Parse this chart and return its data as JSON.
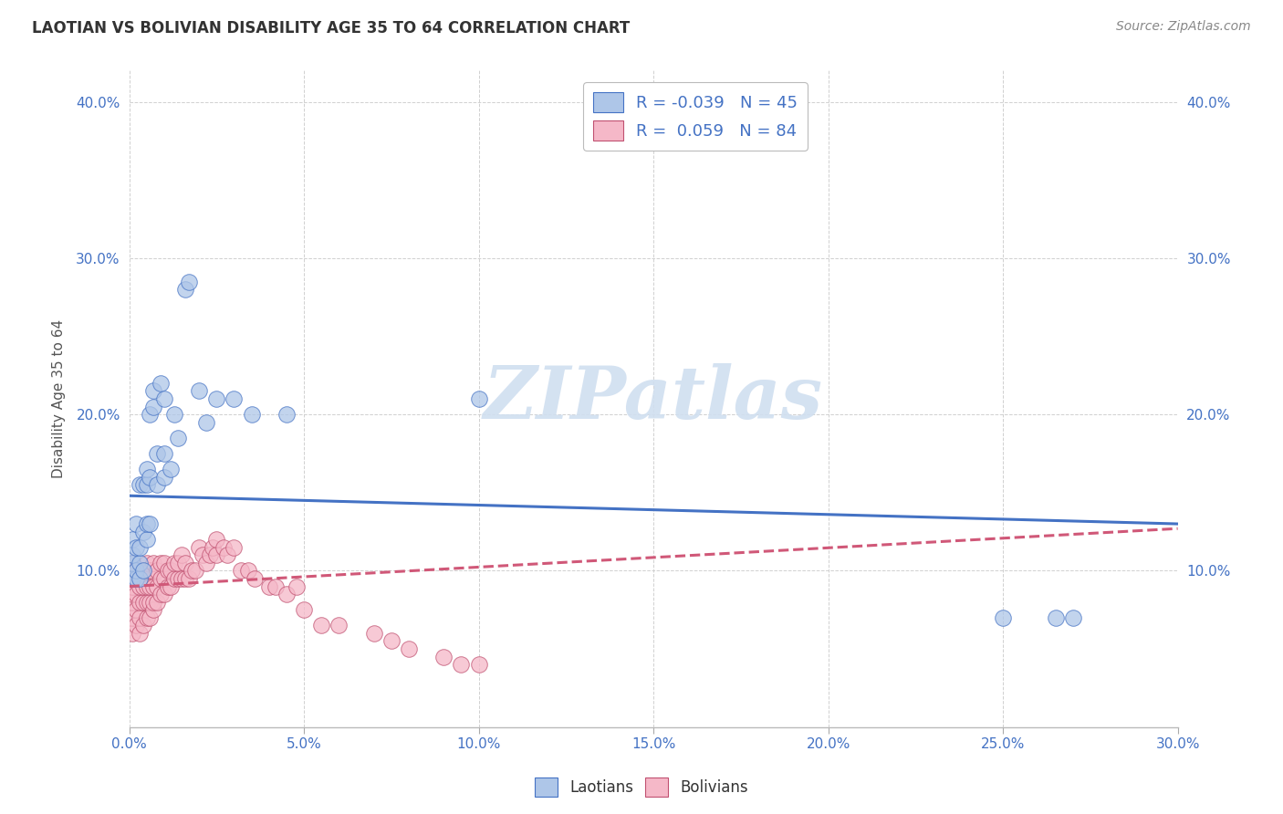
{
  "title": "LAOTIAN VS BOLIVIAN DISABILITY AGE 35 TO 64 CORRELATION CHART",
  "source": "Source: ZipAtlas.com",
  "ylabel_label": "Disability Age 35 to 64",
  "xlim": [
    0.0,
    0.3
  ],
  "ylim": [
    0.0,
    0.42
  ],
  "xticks": [
    0.0,
    0.05,
    0.1,
    0.15,
    0.2,
    0.25,
    0.3
  ],
  "yticks": [
    0.0,
    0.1,
    0.2,
    0.3,
    0.4
  ],
  "background_color": "#ffffff",
  "grid_color": "#d0d0d0",
  "laotian_color": "#aec6e8",
  "laotian_edge": "#4472c4",
  "bolivian_color": "#f5b8c8",
  "bolivian_edge": "#c05070",
  "trend_blue_color": "#4472c4",
  "trend_pink_color": "#d05878",
  "axis_label_color": "#4472c4",
  "title_color": "#333333",
  "source_color": "#888888",
  "watermark": "ZIPatlas",
  "watermark_color": "#d0dff0",
  "blue_trend_x0": 0.0,
  "blue_trend_y0": 0.148,
  "blue_trend_x1": 0.3,
  "blue_trend_y1": 0.13,
  "pink_trend_x0": 0.0,
  "pink_trend_y0": 0.09,
  "pink_trend_x1": 0.3,
  "pink_trend_y1": 0.127,
  "laotian_x": [
    0.001,
    0.001,
    0.001,
    0.001,
    0.002,
    0.002,
    0.002,
    0.002,
    0.003,
    0.003,
    0.003,
    0.003,
    0.004,
    0.004,
    0.004,
    0.005,
    0.005,
    0.005,
    0.005,
    0.006,
    0.006,
    0.006,
    0.007,
    0.007,
    0.008,
    0.008,
    0.009,
    0.01,
    0.01,
    0.01,
    0.012,
    0.013,
    0.014,
    0.016,
    0.017,
    0.02,
    0.022,
    0.025,
    0.03,
    0.035,
    0.045,
    0.1,
    0.25,
    0.265,
    0.27
  ],
  "laotian_y": [
    0.095,
    0.105,
    0.11,
    0.12,
    0.095,
    0.1,
    0.115,
    0.13,
    0.095,
    0.105,
    0.115,
    0.155,
    0.1,
    0.125,
    0.155,
    0.12,
    0.13,
    0.155,
    0.165,
    0.13,
    0.16,
    0.2,
    0.205,
    0.215,
    0.155,
    0.175,
    0.22,
    0.21,
    0.16,
    0.175,
    0.165,
    0.2,
    0.185,
    0.28,
    0.285,
    0.215,
    0.195,
    0.21,
    0.21,
    0.2,
    0.2,
    0.21,
    0.07,
    0.07,
    0.07
  ],
  "bolivian_x": [
    0.001,
    0.001,
    0.001,
    0.001,
    0.001,
    0.001,
    0.001,
    0.002,
    0.002,
    0.002,
    0.002,
    0.002,
    0.003,
    0.003,
    0.003,
    0.003,
    0.003,
    0.004,
    0.004,
    0.004,
    0.004,
    0.005,
    0.005,
    0.005,
    0.005,
    0.005,
    0.006,
    0.006,
    0.006,
    0.006,
    0.007,
    0.007,
    0.007,
    0.007,
    0.008,
    0.008,
    0.008,
    0.009,
    0.009,
    0.009,
    0.01,
    0.01,
    0.01,
    0.011,
    0.011,
    0.012,
    0.012,
    0.013,
    0.013,
    0.014,
    0.014,
    0.015,
    0.015,
    0.016,
    0.016,
    0.017,
    0.018,
    0.019,
    0.02,
    0.021,
    0.022,
    0.023,
    0.024,
    0.025,
    0.025,
    0.027,
    0.028,
    0.03,
    0.032,
    0.034,
    0.036,
    0.04,
    0.042,
    0.045,
    0.048,
    0.05,
    0.055,
    0.06,
    0.07,
    0.075,
    0.08,
    0.09,
    0.095,
    0.1
  ],
  "bolivian_y": [
    0.06,
    0.07,
    0.08,
    0.085,
    0.09,
    0.095,
    0.105,
    0.065,
    0.075,
    0.085,
    0.095,
    0.1,
    0.06,
    0.07,
    0.08,
    0.09,
    0.095,
    0.065,
    0.08,
    0.09,
    0.1,
    0.07,
    0.08,
    0.09,
    0.1,
    0.105,
    0.07,
    0.08,
    0.09,
    0.1,
    0.075,
    0.08,
    0.09,
    0.105,
    0.08,
    0.09,
    0.1,
    0.085,
    0.095,
    0.105,
    0.085,
    0.095,
    0.105,
    0.09,
    0.1,
    0.09,
    0.1,
    0.095,
    0.105,
    0.095,
    0.105,
    0.095,
    0.11,
    0.095,
    0.105,
    0.095,
    0.1,
    0.1,
    0.115,
    0.11,
    0.105,
    0.11,
    0.115,
    0.11,
    0.12,
    0.115,
    0.11,
    0.115,
    0.1,
    0.1,
    0.095,
    0.09,
    0.09,
    0.085,
    0.09,
    0.075,
    0.065,
    0.065,
    0.06,
    0.055,
    0.05,
    0.045,
    0.04,
    0.04
  ]
}
